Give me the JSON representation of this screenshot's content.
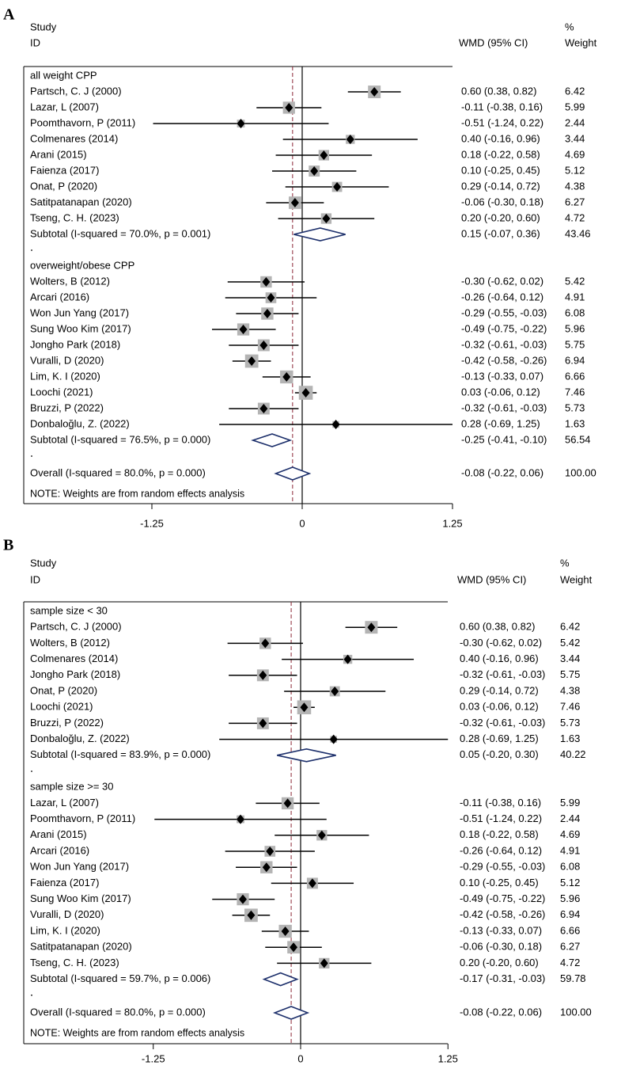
{
  "chart_data": [
    {
      "type": "forest",
      "panel_label": "A",
      "header": {
        "study": "Study",
        "id": "ID",
        "effect": "WMD (95% CI)",
        "pct": "%",
        "weight": "Weight"
      },
      "xaxis": {
        "ticks": [
          -1.25,
          0,
          1.25
        ],
        "tick_labels": [
          "-1.25",
          "0",
          "1.25"
        ],
        "overall_line": -0.08
      },
      "note": "NOTE: Weights are from random effects analysis",
      "groups": [
        {
          "label": "all weight CPP",
          "studies": [
            {
              "name": "Partsch, C. J (2000)",
              "est": 0.6,
              "lo": 0.38,
              "hi": 0.82,
              "ci": "0.60 (0.38, 0.82)",
              "weight": "6.42"
            },
            {
              "name": "Lazar, L (2007)",
              "est": -0.11,
              "lo": -0.38,
              "hi": 0.16,
              "ci": "-0.11 (-0.38, 0.16)",
              "weight": "5.99"
            },
            {
              "name": "Poomthavorn, P (2011)",
              "est": -0.51,
              "lo": -1.24,
              "hi": 0.22,
              "ci": "-0.51 (-1.24, 0.22)",
              "weight": "2.44"
            },
            {
              "name": "Colmenares (2014)",
              "est": 0.4,
              "lo": -0.16,
              "hi": 0.96,
              "ci": "0.40 (-0.16, 0.96)",
              "weight": "3.44"
            },
            {
              "name": "Arani (2015)",
              "est": 0.18,
              "lo": -0.22,
              "hi": 0.58,
              "ci": "0.18 (-0.22, 0.58)",
              "weight": "4.69"
            },
            {
              "name": "Faienza (2017)",
              "est": 0.1,
              "lo": -0.25,
              "hi": 0.45,
              "ci": "0.10 (-0.25, 0.45)",
              "weight": "5.12"
            },
            {
              "name": "Onat, P (2020)",
              "est": 0.29,
              "lo": -0.14,
              "hi": 0.72,
              "ci": "0.29 (-0.14, 0.72)",
              "weight": "4.38"
            },
            {
              "name": "Satitpatanapan (2020)",
              "est": -0.06,
              "lo": -0.3,
              "hi": 0.18,
              "ci": "-0.06 (-0.30, 0.18)",
              "weight": "6.27"
            },
            {
              "name": "Tseng, C. H. (2023)",
              "est": 0.2,
              "lo": -0.2,
              "hi": 0.6,
              "ci": "0.20 (-0.20, 0.60)",
              "weight": "4.72"
            }
          ],
          "subtotal": {
            "label": "Subtotal  (I-squared = 70.0%, p = 0.001)",
            "est": 0.15,
            "lo": -0.07,
            "hi": 0.36,
            "ci": "0.15 (-0.07, 0.36)",
            "weight": "43.46"
          }
        },
        {
          "label": "overweight/obese CPP",
          "studies": [
            {
              "name": "Wolters, B (2012)",
              "est": -0.3,
              "lo": -0.62,
              "hi": 0.02,
              "ci": "-0.30 (-0.62, 0.02)",
              "weight": "5.42"
            },
            {
              "name": "Arcari (2016)",
              "est": -0.26,
              "lo": -0.64,
              "hi": 0.12,
              "ci": "-0.26 (-0.64, 0.12)",
              "weight": "4.91"
            },
            {
              "name": "Won Jun Yang (2017)",
              "est": -0.29,
              "lo": -0.55,
              "hi": -0.03,
              "ci": "-0.29 (-0.55, -0.03)",
              "weight": "6.08"
            },
            {
              "name": "Sung Woo Kim (2017)",
              "est": -0.49,
              "lo": -0.75,
              "hi": -0.22,
              "ci": "-0.49 (-0.75, -0.22)",
              "weight": "5.96"
            },
            {
              "name": "Jongho Park (2018)",
              "est": -0.32,
              "lo": -0.61,
              "hi": -0.03,
              "ci": "-0.32 (-0.61, -0.03)",
              "weight": "5.75"
            },
            {
              "name": "Vuralli, D (2020)",
              "est": -0.42,
              "lo": -0.58,
              "hi": -0.26,
              "ci": "-0.42 (-0.58, -0.26)",
              "weight": "6.94"
            },
            {
              "name": "Lim, K. I (2020)",
              "est": -0.13,
              "lo": -0.33,
              "hi": 0.07,
              "ci": "-0.13 (-0.33, 0.07)",
              "weight": "6.66"
            },
            {
              "name": "Loochi (2021)",
              "est": 0.03,
              "lo": -0.06,
              "hi": 0.12,
              "ci": "0.03 (-0.06, 0.12)",
              "weight": "7.46"
            },
            {
              "name": "Bruzzi, P (2022)",
              "est": -0.32,
              "lo": -0.61,
              "hi": -0.03,
              "ci": "-0.32 (-0.61, -0.03)",
              "weight": "5.73"
            },
            {
              "name": "Donbaloğlu, Z. (2022)",
              "est": 0.28,
              "lo": -0.69,
              "hi": 1.25,
              "ci": "0.28 (-0.69, 1.25)",
              "weight": "1.63"
            }
          ],
          "subtotal": {
            "label": "Subtotal  (I-squared = 76.5%, p = 0.000)",
            "est": -0.25,
            "lo": -0.41,
            "hi": -0.1,
            "ci": "-0.25 (-0.41, -0.10)",
            "weight": "56.54"
          }
        }
      ],
      "overall": {
        "label": "Overall  (I-squared = 80.0%, p = 0.000)",
        "est": -0.08,
        "lo": -0.22,
        "hi": 0.06,
        "ci": "-0.08 (-0.22, 0.06)",
        "weight": "100.00"
      }
    },
    {
      "type": "forest",
      "panel_label": "B",
      "header": {
        "study": "Study",
        "id": "ID",
        "effect": "WMD (95% CI)",
        "pct": "%",
        "weight": "Weight"
      },
      "xaxis": {
        "ticks": [
          -1.25,
          0,
          1.25
        ],
        "tick_labels": [
          "-1.25",
          "0",
          "1.25"
        ],
        "overall_line": -0.08
      },
      "note": "NOTE: Weights are from random effects analysis",
      "groups": [
        {
          "label": "sample size < 30",
          "studies": [
            {
              "name": "Partsch, C. J (2000)",
              "est": 0.6,
              "lo": 0.38,
              "hi": 0.82,
              "ci": "0.60 (0.38, 0.82)",
              "weight": "6.42"
            },
            {
              "name": "Wolters, B (2012)",
              "est": -0.3,
              "lo": -0.62,
              "hi": 0.02,
              "ci": "-0.30 (-0.62, 0.02)",
              "weight": "5.42"
            },
            {
              "name": "Colmenares (2014)",
              "est": 0.4,
              "lo": -0.16,
              "hi": 0.96,
              "ci": "0.40 (-0.16, 0.96)",
              "weight": "3.44"
            },
            {
              "name": "Jongho Park (2018)",
              "est": -0.32,
              "lo": -0.61,
              "hi": -0.03,
              "ci": "-0.32 (-0.61, -0.03)",
              "weight": "5.75"
            },
            {
              "name": "Onat, P (2020)",
              "est": 0.29,
              "lo": -0.14,
              "hi": 0.72,
              "ci": "0.29 (-0.14, 0.72)",
              "weight": "4.38"
            },
            {
              "name": "Loochi (2021)",
              "est": 0.03,
              "lo": -0.06,
              "hi": 0.12,
              "ci": "0.03 (-0.06, 0.12)",
              "weight": "7.46"
            },
            {
              "name": "Bruzzi, P (2022)",
              "est": -0.32,
              "lo": -0.61,
              "hi": -0.03,
              "ci": "-0.32 (-0.61, -0.03)",
              "weight": "5.73"
            },
            {
              "name": "Donbaloğlu, Z. (2022)",
              "est": 0.28,
              "lo": -0.69,
              "hi": 1.25,
              "ci": "0.28 (-0.69, 1.25)",
              "weight": "1.63"
            }
          ],
          "subtotal": {
            "label": "Subtotal  (I-squared = 83.9%, p = 0.000)",
            "est": 0.05,
            "lo": -0.2,
            "hi": 0.3,
            "ci": "0.05 (-0.20, 0.30)",
            "weight": "40.22"
          }
        },
        {
          "label": "sample size >= 30",
          "studies": [
            {
              "name": "Lazar, L (2007)",
              "est": -0.11,
              "lo": -0.38,
              "hi": 0.16,
              "ci": "-0.11 (-0.38, 0.16)",
              "weight": "5.99"
            },
            {
              "name": "Poomthavorn, P (2011)",
              "est": -0.51,
              "lo": -1.24,
              "hi": 0.22,
              "ci": "-0.51 (-1.24, 0.22)",
              "weight": "2.44"
            },
            {
              "name": "Arani (2015)",
              "est": 0.18,
              "lo": -0.22,
              "hi": 0.58,
              "ci": "0.18 (-0.22, 0.58)",
              "weight": "4.69"
            },
            {
              "name": "Arcari (2016)",
              "est": -0.26,
              "lo": -0.64,
              "hi": 0.12,
              "ci": "-0.26 (-0.64, 0.12)",
              "weight": "4.91"
            },
            {
              "name": "Won Jun Yang (2017)",
              "est": -0.29,
              "lo": -0.55,
              "hi": -0.03,
              "ci": "-0.29 (-0.55, -0.03)",
              "weight": "6.08"
            },
            {
              "name": "Faienza (2017)",
              "est": 0.1,
              "lo": -0.25,
              "hi": 0.45,
              "ci": "0.10 (-0.25, 0.45)",
              "weight": "5.12"
            },
            {
              "name": "Sung Woo Kim (2017)",
              "est": -0.49,
              "lo": -0.75,
              "hi": -0.22,
              "ci": "-0.49 (-0.75, -0.22)",
              "weight": "5.96"
            },
            {
              "name": "Vuralli, D (2020)",
              "est": -0.42,
              "lo": -0.58,
              "hi": -0.26,
              "ci": "-0.42 (-0.58, -0.26)",
              "weight": "6.94"
            },
            {
              "name": "Lim, K. I (2020)",
              "est": -0.13,
              "lo": -0.33,
              "hi": 0.07,
              "ci": "-0.13 (-0.33, 0.07)",
              "weight": "6.66"
            },
            {
              "name": "Satitpatanapan (2020)",
              "est": -0.06,
              "lo": -0.3,
              "hi": 0.18,
              "ci": "-0.06 (-0.30, 0.18)",
              "weight": "6.27"
            },
            {
              "name": "Tseng, C. H. (2023)",
              "est": 0.2,
              "lo": -0.2,
              "hi": 0.6,
              "ci": "0.20 (-0.20, 0.60)",
              "weight": "4.72"
            }
          ],
          "subtotal": {
            "label": "Subtotal  (I-squared = 59.7%, p = 0.006)",
            "est": -0.17,
            "lo": -0.31,
            "hi": -0.03,
            "ci": "-0.17 (-0.31, -0.03)",
            "weight": "59.78"
          }
        }
      ],
      "overall": {
        "label": "Overall  (I-squared = 80.0%, p = 0.000)",
        "est": -0.08,
        "lo": -0.22,
        "hi": 0.06,
        "ci": "-0.08 (-0.22, 0.06)",
        "weight": "100.00"
      }
    }
  ],
  "colors": {
    "text": "#000000",
    "marker": "#000000",
    "weight_box": "#b4b4b4",
    "diamond": "#1c2f6b",
    "ref_line": "#8b2635"
  }
}
